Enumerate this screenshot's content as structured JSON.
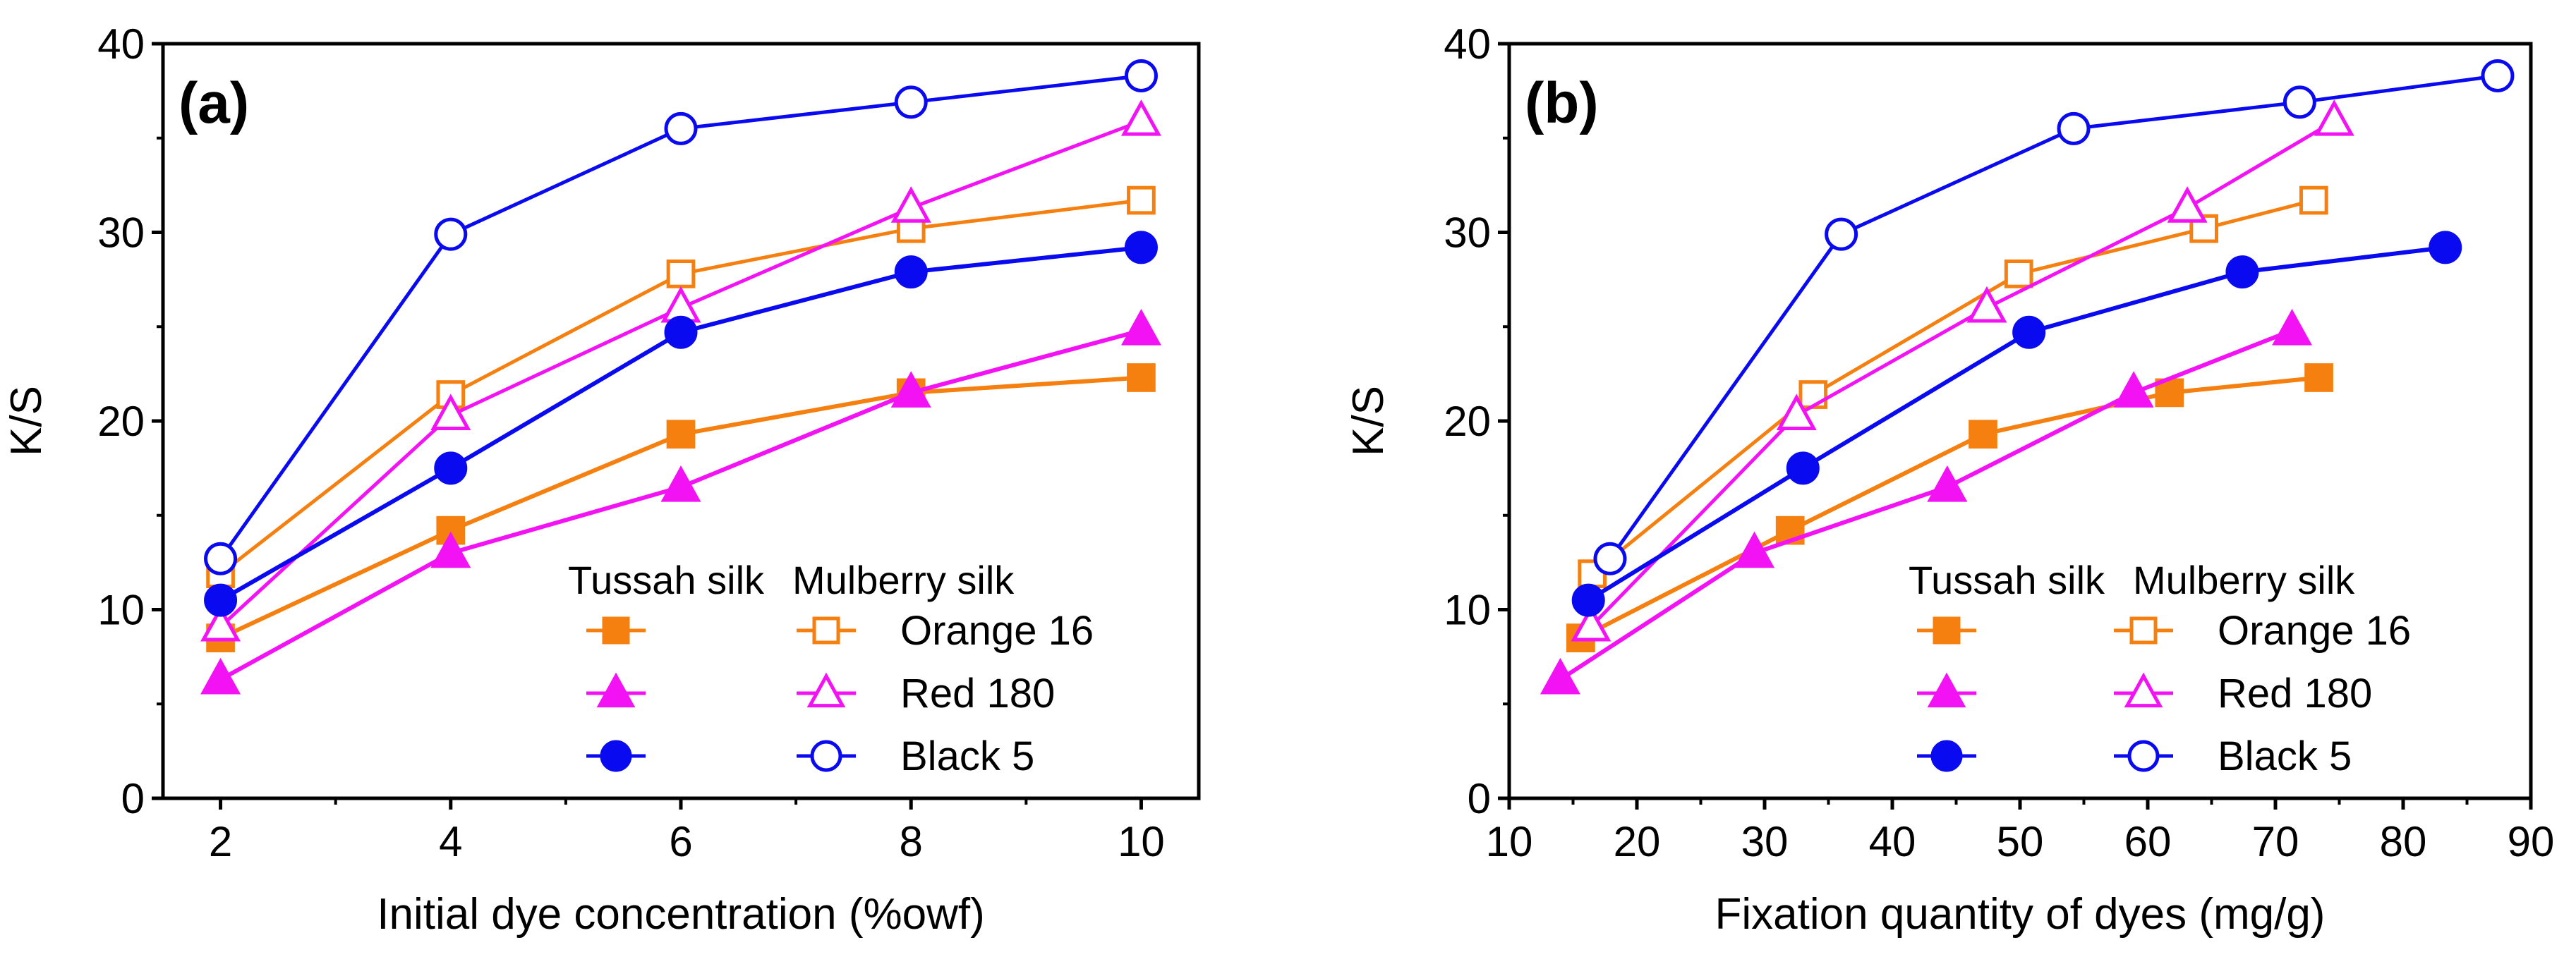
{
  "colors": {
    "orange": "#f5800f",
    "magenta": "#f312f3",
    "blue": "#0a0af0",
    "axis": "#000000"
  },
  "legend": {
    "col1": "Tussah silk",
    "col2": "Mulberry silk"
  },
  "chart_data": [
    {
      "type": "line",
      "panel_label": "(a)",
      "xlabel": "Initial dye concentration (%owf)",
      "ylabel": "K/S",
      "xlim": [
        1.5,
        10.5
      ],
      "ylim": [
        0,
        40
      ],
      "xticks": [
        2,
        4,
        6,
        8,
        10
      ],
      "yticks": [
        0,
        10,
        20,
        30,
        40
      ],
      "legend_position": "bottom-right",
      "series": [
        {
          "name": "Orange 16",
          "silk": "Tussah silk",
          "color": "orange",
          "marker": "square",
          "filled": true,
          "x": [
            2,
            4,
            6,
            8,
            10
          ],
          "y": [
            8.5,
            14.2,
            19.3,
            21.5,
            22.3
          ]
        },
        {
          "name": "Orange 16",
          "silk": "Mulberry silk",
          "color": "orange",
          "marker": "square",
          "filled": false,
          "x": [
            2,
            4,
            6,
            8,
            10
          ],
          "y": [
            11.9,
            21.4,
            27.8,
            30.2,
            31.7
          ]
        },
        {
          "name": "Red 180",
          "silk": "Tussah silk",
          "color": "magenta",
          "marker": "triangle",
          "filled": true,
          "x": [
            2,
            4,
            6,
            8,
            10
          ],
          "y": [
            6.3,
            13.0,
            16.5,
            21.5,
            24.8
          ]
        },
        {
          "name": "Red 180",
          "silk": "Mulberry silk",
          "color": "magenta",
          "marker": "triangle",
          "filled": false,
          "x": [
            2,
            4,
            6,
            8,
            10
          ],
          "y": [
            9.1,
            20.3,
            26.0,
            31.3,
            35.9
          ]
        },
        {
          "name": "Black 5",
          "silk": "Tussah silk",
          "color": "blue",
          "marker": "circle",
          "filled": true,
          "x": [
            2,
            4,
            6,
            8,
            10
          ],
          "y": [
            10.5,
            17.5,
            24.7,
            27.9,
            29.2
          ]
        },
        {
          "name": "Black 5",
          "silk": "Mulberry silk",
          "color": "blue",
          "marker": "circle",
          "filled": false,
          "x": [
            2,
            4,
            6,
            8,
            10
          ],
          "y": [
            12.7,
            29.9,
            35.5,
            36.9,
            38.3
          ]
        }
      ]
    },
    {
      "type": "line",
      "panel_label": "(b)",
      "xlabel": "Fixation quantity of dyes (mg/g)",
      "ylabel": "K/S",
      "xlim": [
        10,
        90
      ],
      "ylim": [
        0,
        40
      ],
      "xticks": [
        10,
        20,
        30,
        40,
        50,
        60,
        70,
        80,
        90
      ],
      "yticks": [
        0,
        10,
        20,
        30,
        40
      ],
      "legend_position": "bottom-right",
      "series": [
        {
          "name": "Orange 16",
          "silk": "Tussah silk",
          "color": "orange",
          "marker": "square",
          "filled": true,
          "x": [
            15.6,
            32.0,
            47.1,
            61.7,
            73.4
          ],
          "y": [
            8.5,
            14.2,
            19.3,
            21.5,
            22.3
          ]
        },
        {
          "name": "Orange 16",
          "silk": "Mulberry silk",
          "color": "orange",
          "marker": "square",
          "filled": false,
          "x": [
            16.5,
            33.8,
            49.9,
            64.4,
            73.0
          ],
          "y": [
            11.9,
            21.4,
            27.8,
            30.2,
            31.7
          ]
        },
        {
          "name": "Red 180",
          "silk": "Tussah silk",
          "color": "magenta",
          "marker": "triangle",
          "filled": true,
          "x": [
            14.0,
            29.2,
            44.3,
            58.9,
            71.3
          ],
          "y": [
            6.3,
            13.0,
            16.5,
            21.5,
            24.8
          ]
        },
        {
          "name": "Red 180",
          "silk": "Mulberry silk",
          "color": "magenta",
          "marker": "triangle",
          "filled": false,
          "x": [
            16.4,
            32.5,
            47.4,
            63.1,
            74.6
          ],
          "y": [
            9.1,
            20.3,
            26.0,
            31.3,
            35.9
          ]
        },
        {
          "name": "Black 5",
          "silk": "Tussah silk",
          "color": "blue",
          "marker": "circle",
          "filled": true,
          "x": [
            16.2,
            33.0,
            50.7,
            67.4,
            83.3
          ],
          "y": [
            10.5,
            17.5,
            24.7,
            27.9,
            29.2
          ]
        },
        {
          "name": "Black 5",
          "silk": "Mulberry silk",
          "color": "blue",
          "marker": "circle",
          "filled": false,
          "x": [
            17.9,
            36.0,
            54.2,
            71.9,
            87.4
          ],
          "y": [
            12.7,
            29.9,
            35.5,
            36.9,
            38.3
          ]
        }
      ]
    }
  ]
}
